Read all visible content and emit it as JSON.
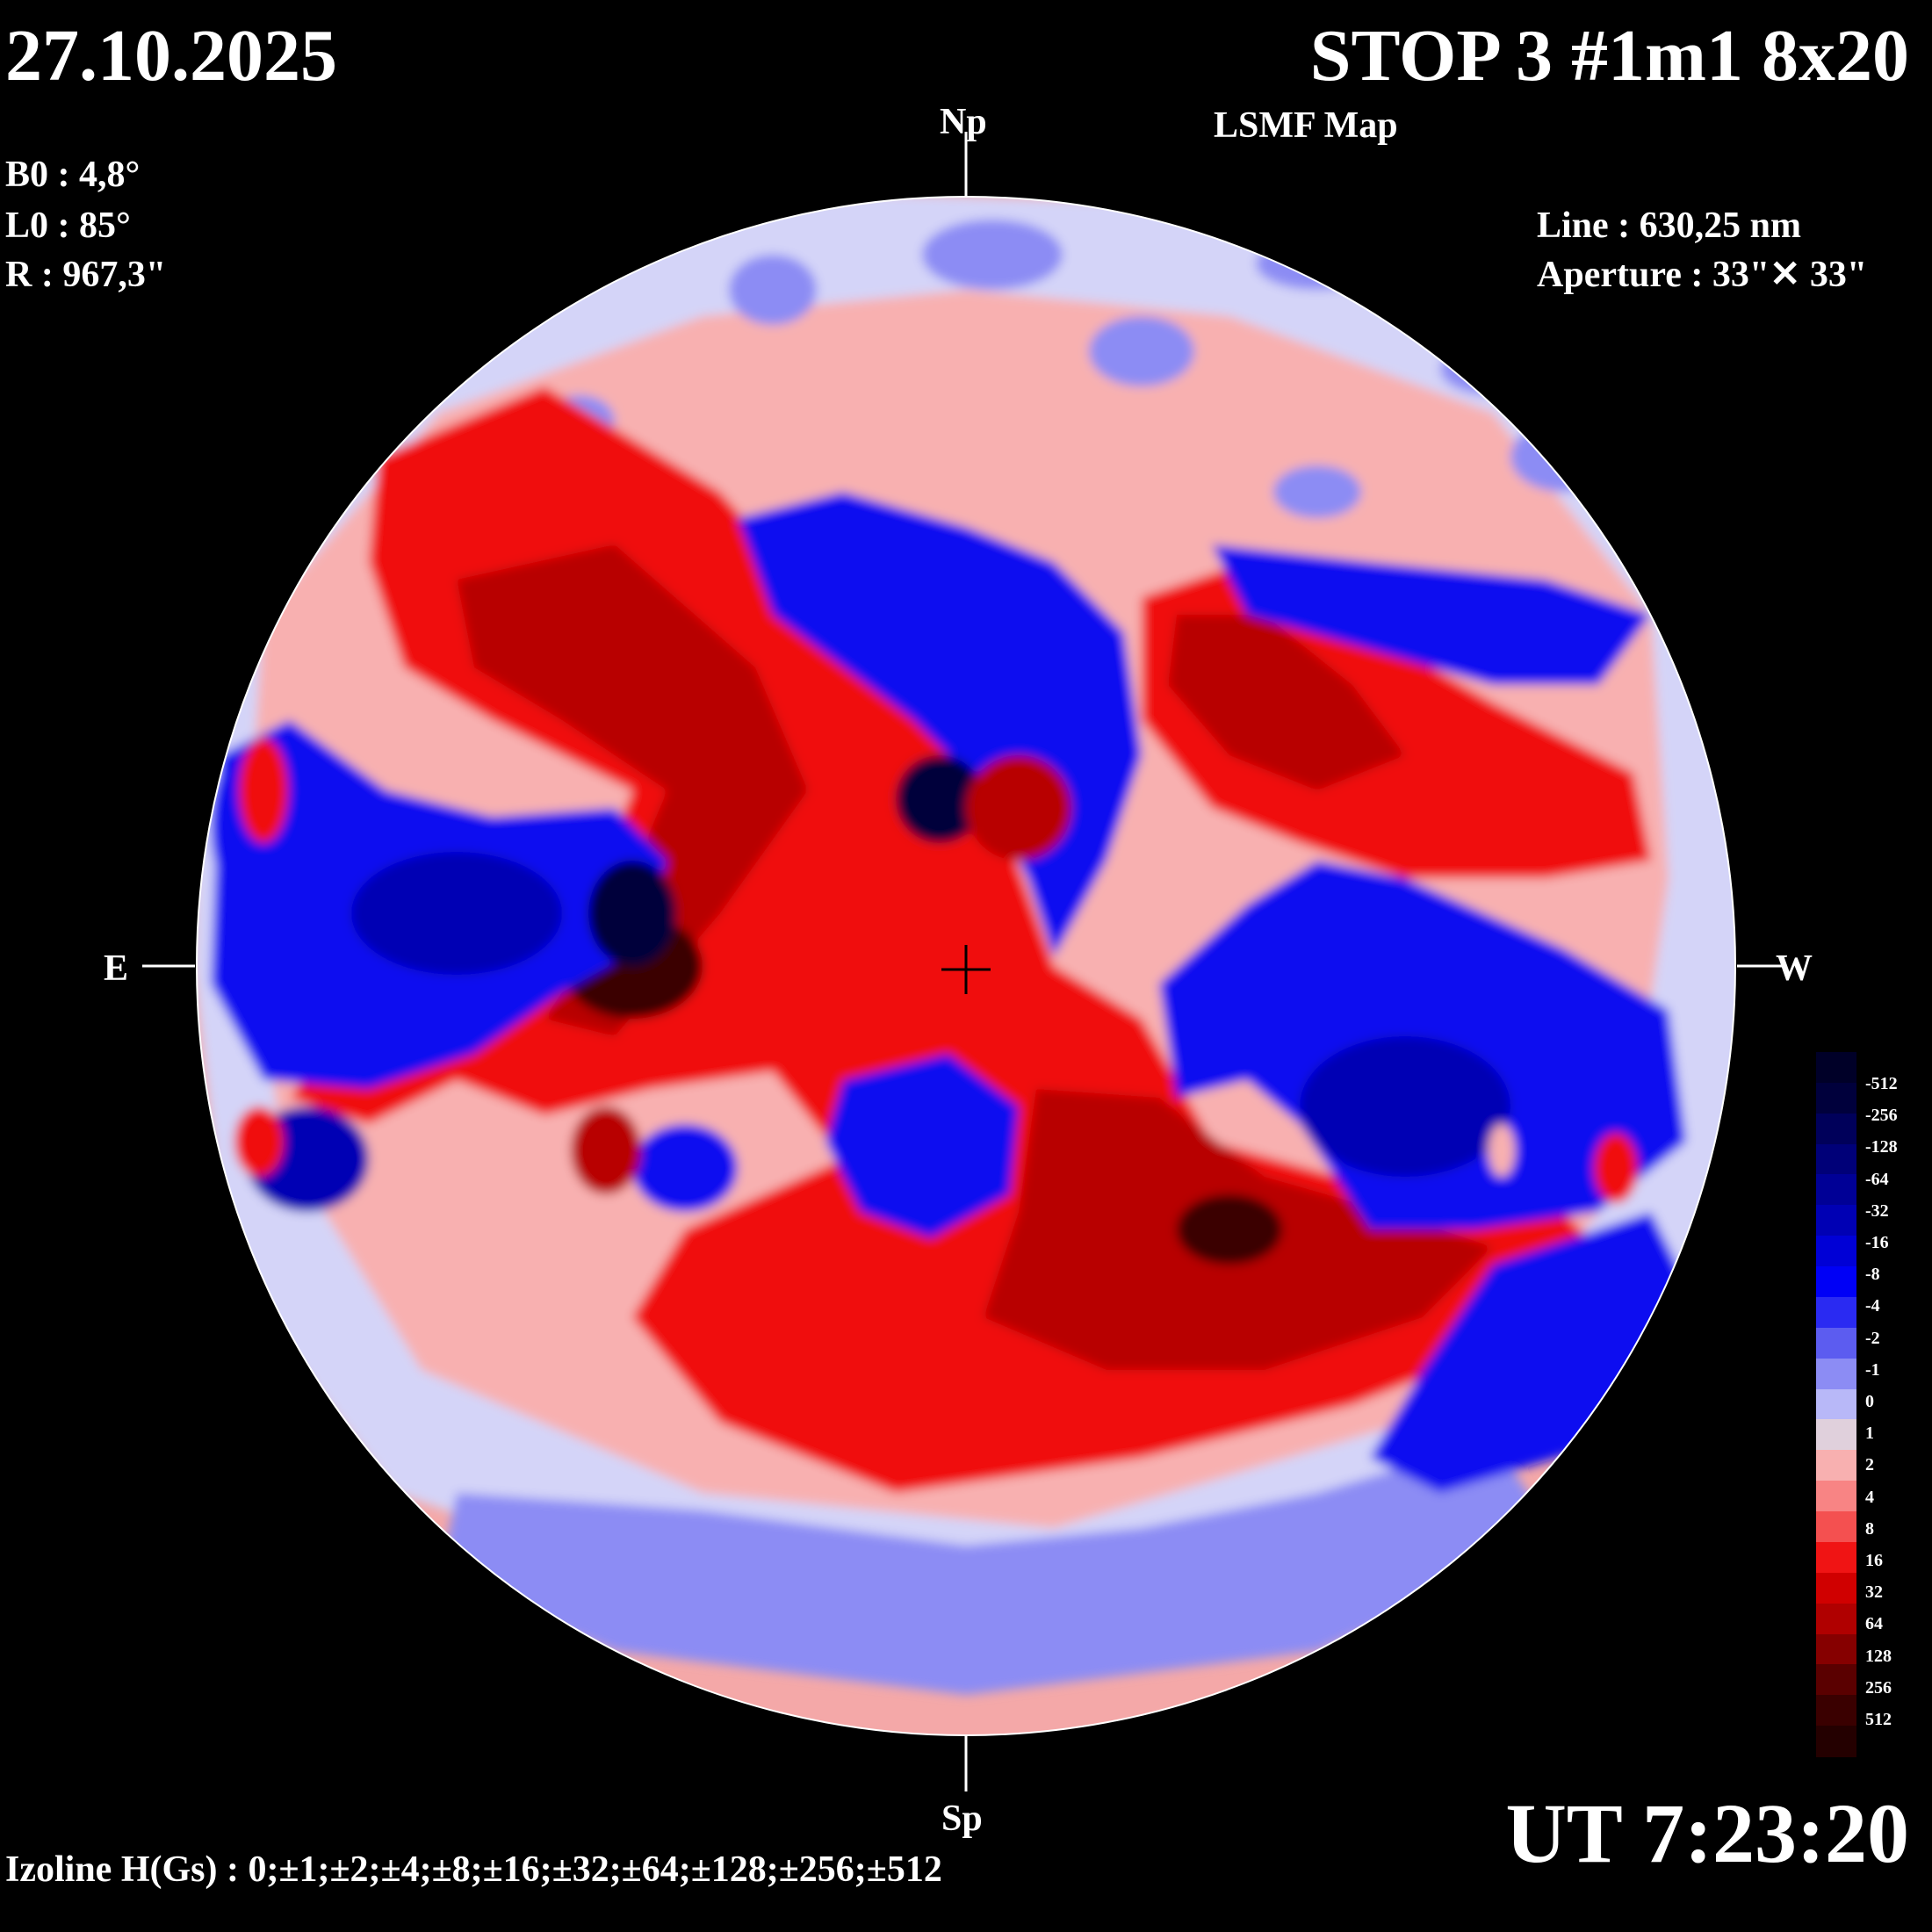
{
  "header": {
    "date": "27.10.2025",
    "title": "STOP 3 #1m1 8x20",
    "subtitle": "LSMF  Map"
  },
  "params": {
    "b0": "B0 : 4,8°",
    "l0": "L0 : 85°",
    "r": "R  : 967,3\""
  },
  "instrument": {
    "line": "Line :  630,25 nm",
    "aperture": "Aperture : 33\"✕ 33\""
  },
  "directions": {
    "north": "Np",
    "south": "Sp",
    "east": "E",
    "west": "W"
  },
  "time": "UT 7:23:20",
  "izoline": "Izoline H(Gs) : 0;±1;±2;±4;±8;±16;±32;±64;±128;±256;±512",
  "colors": {
    "background": "#000000",
    "negative_max": "#00003a",
    "negative_strong": "#0000b4",
    "negative_mid": "#1010f0",
    "negative_weak": "#8c8cf4",
    "zero": "#d4d4f8",
    "positive_weak": "#f8b0b0",
    "positive_mid": "#f01010",
    "positive_strong": "#b80000",
    "positive_max": "#3a0000",
    "izoline": "#ffffff"
  },
  "legend": {
    "labels": [
      "-512",
      "-256",
      "-128",
      "-64",
      "-32",
      "-16",
      "-8",
      "-4",
      "-2",
      "-1",
      "0",
      "1",
      "2",
      "4",
      "8",
      "16",
      "32",
      "64",
      "128",
      "256",
      "512"
    ],
    "colors": [
      "#000028",
      "#00003c",
      "#00005a",
      "#000078",
      "#000096",
      "#0000b4",
      "#0000d6",
      "#0000f6",
      "#2a2af2",
      "#5c5cf0",
      "#8c8cf4",
      "#b8b8f8",
      "#e0d0dc",
      "#f8b0b0",
      "#f88484",
      "#f45050",
      "#f01414",
      "#d00000",
      "#b00000",
      "#860000",
      "#5a0000",
      "#3a0000",
      "#240000"
    ]
  }
}
